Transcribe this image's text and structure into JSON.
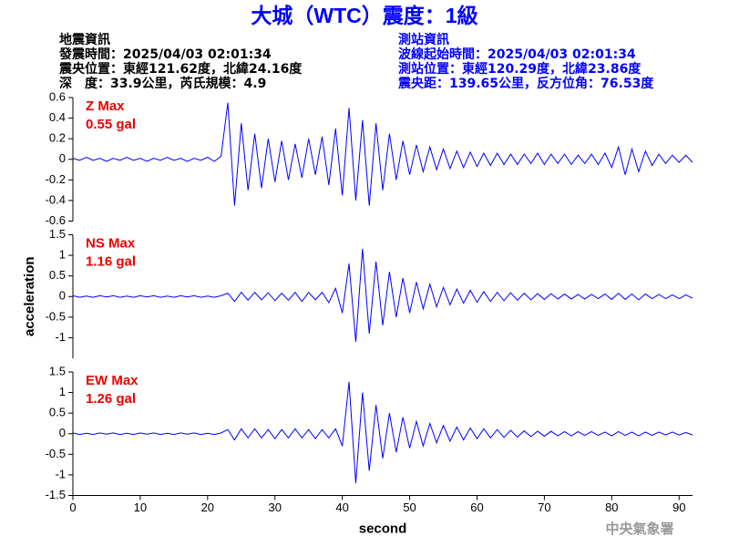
{
  "header": {
    "title": "大城（WTC）震度：1級",
    "left": [
      "地震資訊",
      "發震時間：2025/04/03 02:01:34",
      "震央位置：東經121.62度，北緯24.16度",
      "深　度：33.9公里，芮氏規模：4.9"
    ],
    "right": [
      "測站資訊",
      "波線起始時間：2025/04/03 02:01:34",
      "測站位置：東經120.29度，北緯23.86度",
      "震央距：139.65公里，反方位角：76.53度"
    ]
  },
  "footer": "中央氣象署",
  "chart_data": [
    {
      "type": "line",
      "annotations": [
        "Z Max",
        "0.55 gal"
      ],
      "color": "#0000ff",
      "xlim": [
        0,
        92
      ],
      "ylim": [
        -0.6,
        0.6
      ],
      "yticks": [
        0.6,
        0.4,
        0.2,
        0,
        -0.2,
        -0.4,
        -0.6
      ],
      "x": [
        0,
        1,
        2,
        3,
        4,
        5,
        6,
        7,
        8,
        9,
        10,
        11,
        12,
        13,
        14,
        15,
        16,
        17,
        18,
        19,
        20,
        21,
        22,
        23,
        24,
        25,
        26,
        27,
        28,
        29,
        30,
        31,
        32,
        33,
        34,
        35,
        36,
        37,
        38,
        39,
        40,
        41,
        42,
        43,
        44,
        45,
        46,
        47,
        48,
        49,
        50,
        51,
        52,
        53,
        54,
        55,
        56,
        57,
        58,
        59,
        60,
        61,
        62,
        63,
        64,
        65,
        66,
        67,
        68,
        69,
        70,
        71,
        72,
        73,
        74,
        75,
        76,
        77,
        78,
        79,
        80,
        81,
        82,
        83,
        84,
        85,
        86,
        87,
        88,
        89,
        90,
        91,
        92
      ],
      "values": [
        0.01,
        -0.01,
        0.02,
        -0.01,
        0.01,
        -0.02,
        0.01,
        -0.01,
        0.02,
        -0.01,
        0.01,
        -0.02,
        0.01,
        -0.01,
        0.02,
        -0.01,
        0.01,
        -0.02,
        0.01,
        -0.01,
        0.02,
        -0.02,
        0.03,
        0.55,
        -0.45,
        0.35,
        -0.3,
        0.25,
        -0.28,
        0.2,
        -0.22,
        0.18,
        -0.2,
        0.15,
        -0.18,
        0.2,
        -0.15,
        0.22,
        -0.25,
        0.3,
        -0.35,
        0.5,
        -0.4,
        0.38,
        -0.45,
        0.35,
        -0.3,
        0.25,
        -0.2,
        0.18,
        -0.15,
        0.14,
        -0.12,
        0.12,
        -0.1,
        0.1,
        -0.09,
        0.08,
        -0.08,
        0.07,
        -0.07,
        0.06,
        -0.06,
        0.06,
        -0.05,
        0.05,
        -0.05,
        0.05,
        -0.04,
        0.06,
        -0.05,
        0.05,
        -0.04,
        0.05,
        -0.05,
        0.04,
        -0.04,
        0.05,
        -0.05,
        0.06,
        -0.08,
        0.12,
        -0.15,
        0.1,
        -0.12,
        0.08,
        -0.06,
        0.05,
        -0.04,
        0.04,
        -0.03,
        0.04,
        -0.03
      ]
    },
    {
      "type": "line",
      "annotations": [
        "NS Max",
        "1.16 gal"
      ],
      "color": "#0000ff",
      "ylabel": "acceleration",
      "xlim": [
        0,
        92
      ],
      "ylim": [
        -1.5,
        1.5
      ],
      "yticks": [
        1.5,
        1,
        0.5,
        0,
        -0.5,
        -1
      ],
      "x": [
        0,
        1,
        2,
        3,
        4,
        5,
        6,
        7,
        8,
        9,
        10,
        11,
        12,
        13,
        14,
        15,
        16,
        17,
        18,
        19,
        20,
        21,
        22,
        23,
        24,
        25,
        26,
        27,
        28,
        29,
        30,
        31,
        32,
        33,
        34,
        35,
        36,
        37,
        38,
        39,
        40,
        41,
        42,
        43,
        44,
        45,
        46,
        47,
        48,
        49,
        50,
        51,
        52,
        53,
        54,
        55,
        56,
        57,
        58,
        59,
        60,
        61,
        62,
        63,
        64,
        65,
        66,
        67,
        68,
        69,
        70,
        71,
        72,
        73,
        74,
        75,
        76,
        77,
        78,
        79,
        80,
        81,
        82,
        83,
        84,
        85,
        86,
        87,
        88,
        89,
        90,
        91,
        92
      ],
      "values": [
        0.02,
        -0.02,
        0.01,
        -0.02,
        0.02,
        -0.01,
        0.02,
        -0.02,
        0.01,
        -0.02,
        0.02,
        -0.01,
        0.02,
        -0.02,
        0.01,
        -0.02,
        0.02,
        -0.01,
        0.02,
        -0.02,
        0.01,
        -0.02,
        0.02,
        0.08,
        -0.12,
        0.1,
        -0.09,
        0.1,
        -0.08,
        0.09,
        -0.1,
        0.08,
        -0.09,
        0.1,
        -0.12,
        0.1,
        -0.08,
        0.1,
        -0.15,
        0.2,
        -0.4,
        0.8,
        -1.1,
        1.16,
        -0.9,
        0.85,
        -0.7,
        0.6,
        -0.5,
        0.45,
        -0.4,
        0.35,
        -0.3,
        0.3,
        -0.25,
        0.22,
        -0.2,
        0.18,
        -0.16,
        0.15,
        -0.14,
        0.12,
        -0.12,
        0.1,
        -0.1,
        0.09,
        -0.09,
        0.08,
        -0.08,
        0.07,
        -0.07,
        0.07,
        -0.06,
        0.06,
        -0.06,
        0.05,
        -0.06,
        0.05,
        -0.05,
        0.06,
        -0.07,
        0.08,
        -0.07,
        0.06,
        -0.08,
        0.06,
        -0.05,
        0.05,
        -0.05,
        0.04,
        -0.05,
        0.04,
        -0.04
      ]
    },
    {
      "type": "line",
      "annotations": [
        "EW Max",
        "1.26 gal"
      ],
      "color": "#0000ff",
      "xlabel": "second",
      "xlim": [
        0,
        92
      ],
      "ylim": [
        -1.5,
        1.5
      ],
      "yticks": [
        1.5,
        1,
        0.5,
        0,
        -0.5,
        -1,
        -1.5
      ],
      "xticks": [
        0,
        10,
        20,
        30,
        40,
        50,
        60,
        70,
        80,
        90
      ],
      "x": [
        0,
        1,
        2,
        3,
        4,
        5,
        6,
        7,
        8,
        9,
        10,
        11,
        12,
        13,
        14,
        15,
        16,
        17,
        18,
        19,
        20,
        21,
        22,
        23,
        24,
        25,
        26,
        27,
        28,
        29,
        30,
        31,
        32,
        33,
        34,
        35,
        36,
        37,
        38,
        39,
        40,
        41,
        42,
        43,
        44,
        45,
        46,
        47,
        48,
        49,
        50,
        51,
        52,
        53,
        54,
        55,
        56,
        57,
        58,
        59,
        60,
        61,
        62,
        63,
        64,
        65,
        66,
        67,
        68,
        69,
        70,
        71,
        72,
        73,
        74,
        75,
        76,
        77,
        78,
        79,
        80,
        81,
        82,
        83,
        84,
        85,
        86,
        87,
        88,
        89,
        90,
        91,
        92
      ],
      "values": [
        0.02,
        -0.02,
        0.01,
        -0.02,
        0.02,
        -0.01,
        0.02,
        -0.02,
        0.01,
        -0.02,
        0.02,
        -0.01,
        0.02,
        -0.02,
        0.01,
        -0.02,
        0.02,
        -0.01,
        0.02,
        -0.02,
        0.01,
        -0.02,
        0.02,
        0.1,
        -0.15,
        0.12,
        -0.1,
        0.12,
        -0.1,
        0.1,
        -0.12,
        0.1,
        -0.1,
        0.12,
        -0.1,
        0.1,
        -0.12,
        0.1,
        -0.1,
        0.12,
        -0.3,
        1.26,
        -1.2,
        1.0,
        -0.9,
        0.7,
        -0.6,
        0.5,
        -0.45,
        0.4,
        -0.35,
        0.3,
        -0.3,
        0.25,
        -0.22,
        0.2,
        -0.18,
        0.16,
        -0.15,
        0.14,
        -0.12,
        0.12,
        -0.1,
        0.1,
        -0.09,
        0.08,
        -0.08,
        0.07,
        -0.07,
        0.06,
        -0.06,
        0.06,
        -0.05,
        0.05,
        -0.05,
        0.05,
        -0.04,
        0.05,
        -0.04,
        0.04,
        -0.05,
        0.05,
        -0.04,
        0.04,
        -0.05,
        0.04,
        -0.04,
        0.04,
        -0.03,
        0.04,
        -0.03,
        0.03,
        -0.03
      ]
    }
  ]
}
